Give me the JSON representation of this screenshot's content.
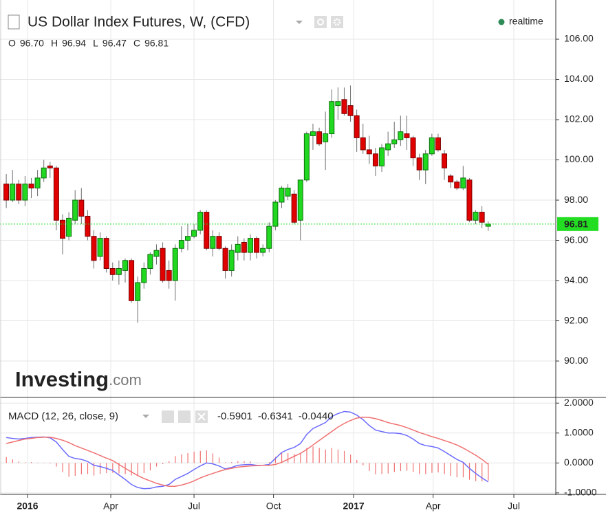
{
  "chart_data": {
    "type": "candlestick",
    "title": "US Dollar Index Futures, W, (CFD)",
    "status": "realtime",
    "watermark": [
      "Investing",
      ".com"
    ],
    "ohlc_keys": [
      "O",
      "H",
      "L",
      "C"
    ],
    "ohlc_values": [
      "96.70",
      "96.94",
      "96.47",
      "96.81"
    ],
    "open": [
      98.8,
      98.0,
      98.8,
      98.0,
      98.8,
      98.6,
      99.1,
      99.7,
      99.6,
      97.0,
      96.2,
      97.0,
      98.0,
      97.2,
      96.2,
      95.2,
      96.1,
      94.6,
      94.3,
      94.5,
      95.0,
      93.0,
      93.9,
      94.6,
      95.2,
      95.6,
      94.5,
      94.0,
      95.6,
      96.0,
      96.2,
      96.5,
      97.4,
      95.6,
      96.2,
      95.6,
      94.5,
      95.4,
      95.9,
      95.4,
      96.1,
      95.4,
      95.6,
      96.7,
      97.9,
      98.2,
      98.3,
      97.0,
      99.0,
      101.2,
      101.4,
      100.9,
      101.3,
      102.7,
      103.0,
      102.7,
      102.2,
      101.1,
      100.5,
      100.3,
      99.7,
      100.5,
      100.8,
      101.0,
      101.3,
      101.1,
      100.1,
      99.5,
      100.3,
      101.1,
      100.3,
      99.2,
      98.9,
      98.6,
      99.0,
      97.0,
      97.4,
      96.7
    ],
    "high": [
      99.3,
      99.5,
      99.0,
      99.2,
      99.1,
      99.5,
      100.0,
      99.9,
      99.7,
      97.3,
      97.4,
      98.5,
      98.6,
      97.5,
      96.5,
      96.4,
      96.2,
      94.9,
      95.0,
      95.1,
      95.1,
      94.2,
      94.9,
      95.4,
      95.8,
      95.9,
      95.0,
      95.8,
      96.7,
      96.8,
      96.8,
      97.5,
      97.5,
      96.5,
      96.4,
      95.7,
      95.8,
      96.2,
      96.1,
      96.3,
      96.2,
      95.8,
      96.9,
      98.0,
      98.7,
      98.8,
      98.5,
      99.0,
      101.4,
      101.8,
      101.6,
      102.4,
      103.5,
      103.6,
      103.6,
      103.7,
      102.5,
      101.8,
      101.2,
      100.6,
      100.8,
      101.4,
      101.9,
      102.2,
      102.2,
      101.2,
      100.3,
      100.5,
      101.3,
      101.3,
      100.5,
      99.3,
      99.0,
      99.7,
      99.1,
      97.5,
      97.7,
      96.94
    ],
    "low": [
      97.6,
      97.9,
      97.8,
      97.7,
      98.1,
      98.2,
      98.9,
      99.1,
      96.5,
      95.3,
      96.0,
      96.8,
      96.8,
      96.0,
      94.6,
      95.0,
      94.4,
      94.0,
      93.8,
      93.9,
      92.9,
      91.9,
      93.6,
      94.3,
      94.8,
      93.9,
      93.6,
      93.0,
      95.4,
      95.5,
      96.1,
      96.3,
      95.5,
      95.2,
      95.5,
      94.1,
      94.2,
      95.0,
      95.0,
      95.0,
      95.1,
      95.2,
      95.4,
      96.5,
      97.6,
      98.0,
      96.8,
      96.0,
      98.9,
      100.5,
      100.7,
      99.5,
      101.1,
      102.0,
      102.2,
      101.9,
      100.4,
      100.3,
      99.8,
      99.2,
      99.4,
      100.2,
      100.6,
      100.7,
      100.5,
      99.7,
      99.0,
      98.8,
      100.2,
      100.4,
      99.0,
      98.6,
      98.5,
      98.5,
      96.9,
      96.8,
      96.6,
      96.47
    ],
    "close": [
      98.0,
      98.8,
      98.0,
      98.8,
      98.6,
      99.1,
      99.6,
      99.6,
      97.0,
      96.1,
      97.1,
      98.0,
      97.2,
      96.2,
      95.0,
      96.1,
      94.6,
      94.3,
      94.6,
      95.0,
      93.0,
      93.9,
      94.6,
      95.3,
      95.5,
      94.0,
      94.0,
      95.6,
      96.0,
      96.2,
      96.5,
      97.4,
      95.6,
      96.2,
      95.6,
      94.5,
      95.5,
      95.8,
      95.4,
      96.1,
      95.4,
      95.6,
      96.7,
      97.9,
      98.6,
      98.6,
      96.9,
      99.0,
      101.3,
      101.4,
      100.8,
      101.3,
      102.9,
      102.9,
      102.3,
      102.2,
      101.1,
      100.5,
      100.3,
      99.7,
      100.6,
      100.8,
      101.0,
      101.4,
      101.1,
      100.1,
      99.5,
      100.3,
      101.1,
      100.5,
      99.6,
      98.9,
      98.6,
      99.1,
      97.0,
      97.4,
      96.9,
      96.81
    ],
    "colors": {
      "up": "#1fd81f",
      "up_edge": "#0d6e0d",
      "down": "#e00000",
      "down_edge": "#7a0000",
      "wick": "#6e6e6e",
      "last": "#22dd22"
    },
    "ylim": [
      88.19,
      107.95
    ],
    "yticks": [
      {
        "value": 90,
        "label": "90.00"
      },
      {
        "value": 92,
        "label": "92.00"
      },
      {
        "value": 94,
        "label": "94.00"
      },
      {
        "value": 96,
        "label": "96.00"
      },
      {
        "value": 98,
        "label": "98.00"
      },
      {
        "value": 100,
        "label": "100.00"
      },
      {
        "value": 102,
        "label": "102.00"
      },
      {
        "value": 104,
        "label": "104.00"
      },
      {
        "value": 106,
        "label": "106.00"
      }
    ],
    "xlim": [
      -1,
      87.8
    ],
    "xticks": [
      {
        "value": 3.4,
        "label": "2016"
      },
      {
        "value": 16.7,
        "label": "Apr"
      },
      {
        "value": 30,
        "label": "Jul"
      },
      {
        "value": 42.7,
        "label": "Oct"
      },
      {
        "value": 55.5,
        "label": "2017"
      },
      {
        "value": 68.2,
        "label": "Apr"
      },
      {
        "value": 81.1,
        "label": "Jul"
      }
    ],
    "grid": true,
    "indicator": {
      "type": "macd",
      "title": "MACD (12, 26, close, 9)",
      "value_labels": [
        "-0.5901",
        "-0.6341",
        "-0.0440"
      ],
      "ylim": [
        -1.05,
        2.19
      ],
      "yticks": [
        {
          "value": -1,
          "label": "-1.0000"
        },
        {
          "value": 0,
          "label": "0.0000"
        },
        {
          "value": 1,
          "label": "1.0000"
        },
        {
          "value": 2,
          "label": "2.0000"
        }
      ],
      "series": [
        {
          "style": "bar",
          "color": "#f07070",
          "values": [
            0.2,
            0.12,
            0.05,
            0.02,
            0.03,
            0.01,
            0.01,
            -0.02,
            -0.12,
            -0.31,
            -0.46,
            -0.43,
            -0.38,
            -0.37,
            -0.42,
            -0.37,
            -0.34,
            -0.33,
            -0.35,
            -0.37,
            -0.42,
            -0.4,
            -0.34,
            -0.25,
            -0.12,
            -0.04,
            0.06,
            0.23,
            0.29,
            0.33,
            0.38,
            0.4,
            0.42,
            0.32,
            0.18,
            0.02,
            0.03,
            0.06,
            0.06,
            0.05,
            0.01,
            0.0,
            0.03,
            0.2,
            0.33,
            0.33,
            0.3,
            0.33,
            0.5,
            0.55,
            0.5,
            0.45,
            0.5,
            0.45,
            0.4,
            0.28,
            0.1,
            -0.08,
            -0.27,
            -0.38,
            -0.37,
            -0.35,
            -0.3,
            -0.27,
            -0.26,
            -0.3,
            -0.37,
            -0.37,
            -0.33,
            -0.32,
            -0.37,
            -0.43,
            -0.48,
            -0.48,
            -0.56,
            -0.61,
            -0.62,
            -0.5901
          ]
        },
        {
          "style": "line",
          "color": "#6b6bff",
          "values": [
            0.85,
            0.82,
            0.8,
            0.82,
            0.85,
            0.86,
            0.87,
            0.84,
            0.7,
            0.45,
            0.22,
            0.15,
            0.12,
            0.05,
            -0.08,
            -0.12,
            -0.18,
            -0.25,
            -0.4,
            -0.55,
            -0.72,
            -0.82,
            -0.86,
            -0.85,
            -0.8,
            -0.78,
            -0.72,
            -0.55,
            -0.45,
            -0.35,
            -0.22,
            -0.1,
            0.0,
            -0.03,
            -0.1,
            -0.2,
            -0.15,
            -0.08,
            -0.06,
            -0.05,
            -0.08,
            -0.08,
            -0.05,
            0.15,
            0.35,
            0.45,
            0.52,
            0.65,
            0.95,
            1.15,
            1.25,
            1.35,
            1.55,
            1.65,
            1.72,
            1.7,
            1.6,
            1.45,
            1.25,
            1.1,
            1.05,
            1.0,
            1.0,
            0.98,
            0.92,
            0.8,
            0.65,
            0.58,
            0.55,
            0.5,
            0.38,
            0.25,
            0.12,
            0.02,
            -0.18,
            -0.35,
            -0.5,
            -0.6341
          ]
        },
        {
          "style": "line",
          "color": "#f07070",
          "values": [
            0.65,
            0.7,
            0.75,
            0.8,
            0.82,
            0.85,
            0.86,
            0.86,
            0.82,
            0.76,
            0.68,
            0.58,
            0.5,
            0.42,
            0.34,
            0.25,
            0.16,
            0.08,
            -0.05,
            -0.18,
            -0.3,
            -0.42,
            -0.52,
            -0.6,
            -0.68,
            -0.74,
            -0.78,
            -0.78,
            -0.74,
            -0.68,
            -0.6,
            -0.5,
            -0.42,
            -0.35,
            -0.28,
            -0.22,
            -0.18,
            -0.14,
            -0.12,
            -0.1,
            -0.09,
            -0.08,
            -0.08,
            -0.05,
            0.02,
            0.12,
            0.22,
            0.32,
            0.45,
            0.6,
            0.75,
            0.9,
            1.05,
            1.2,
            1.32,
            1.42,
            1.5,
            1.53,
            1.52,
            1.48,
            1.42,
            1.35,
            1.3,
            1.25,
            1.18,
            1.1,
            1.02,
            0.95,
            0.88,
            0.82,
            0.75,
            0.68,
            0.6,
            0.5,
            0.38,
            0.26,
            0.12,
            -0.044
          ]
        }
      ]
    }
  }
}
